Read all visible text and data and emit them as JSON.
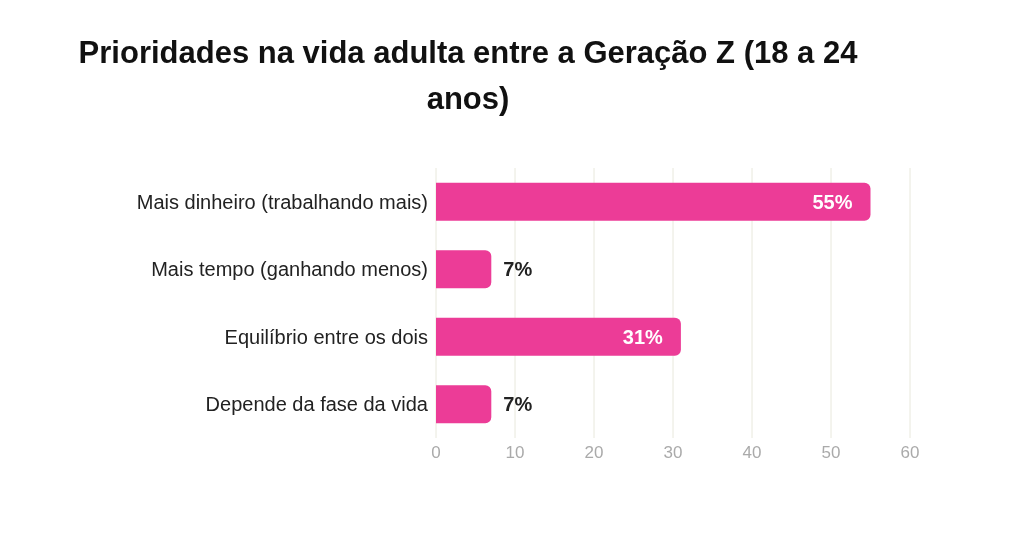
{
  "chart_data": {
    "type": "bar",
    "orientation": "horizontal",
    "title": "Prioridades na vida adulta entre a Geração Z (18 a 24 anos)",
    "categories": [
      "Mais dinheiro (trabalhando mais)",
      "Mais tempo (ganhando menos)",
      "Equilíbrio entre os dois",
      "Depende da fase da vida"
    ],
    "values": [
      55,
      7,
      31,
      7
    ],
    "value_labels": [
      "55%",
      "7%",
      "31%",
      "7%"
    ],
    "color": "#ec3c97",
    "xlim": [
      0,
      60
    ],
    "xticks": [
      0,
      10,
      20,
      30,
      40,
      50,
      60
    ],
    "grid": "x"
  }
}
